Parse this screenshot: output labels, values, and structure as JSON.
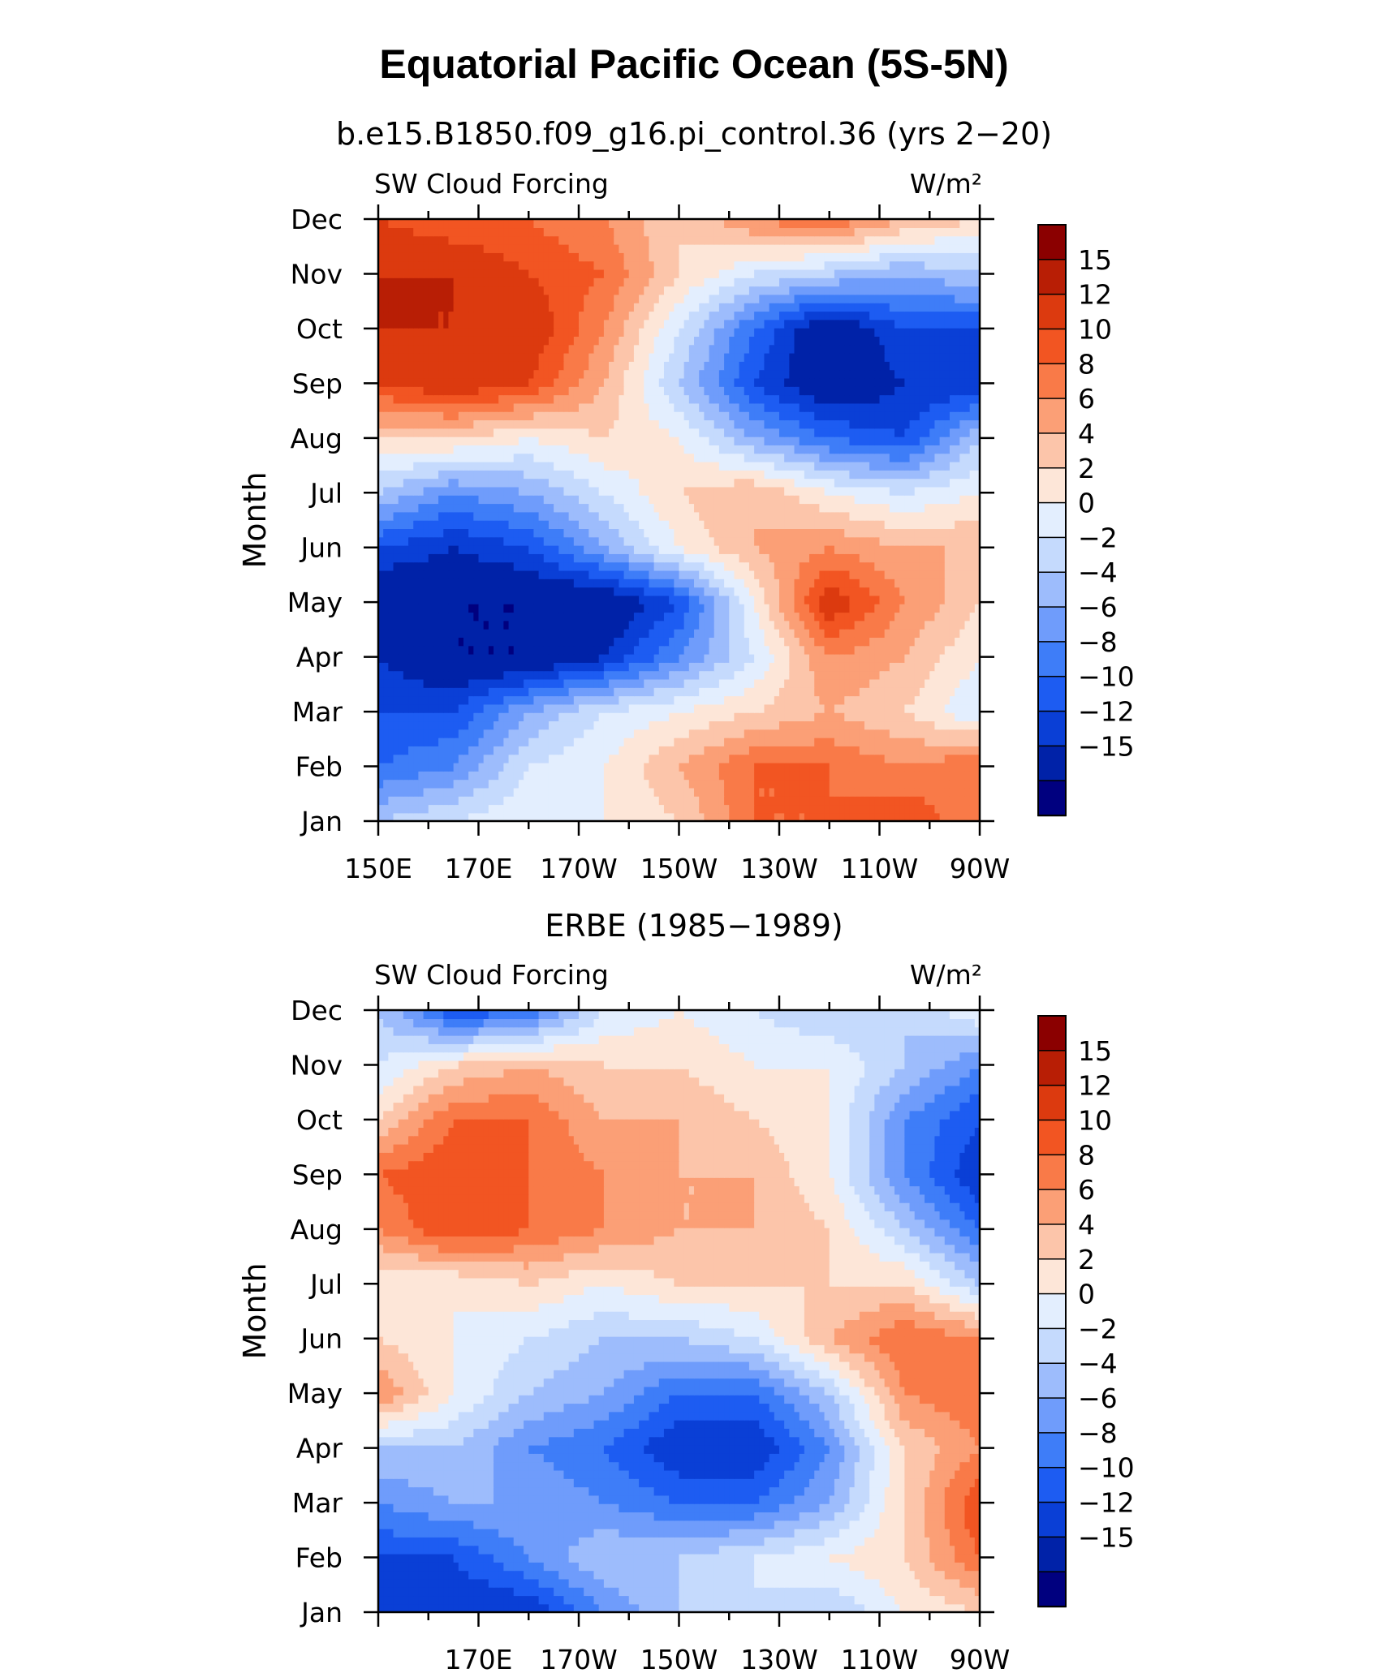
{
  "page_title": "Equatorial Pacific Ocean (5S-5N)",
  "chart_data": [
    {
      "type": "heatmap",
      "title": "b.e15.B1850.f09_g16.pi_control.36 (yrs 2−20)",
      "left_label": "SW Cloud Forcing",
      "units_label": "W/m²",
      "ylabel": "Month",
      "xlabel": "",
      "x_tick_labels": [
        "150E",
        "170E",
        "170W",
        "150W",
        "130W",
        "110W",
        "90W"
      ],
      "x_tick_values": [
        150,
        170,
        190,
        210,
        230,
        250,
        270
      ],
      "xlim": [
        150,
        270
      ],
      "y_tick_labels": [
        "Jan",
        "Feb",
        "Mar",
        "Apr",
        "May",
        "Jun",
        "Jul",
        "Aug",
        "Sep",
        "Oct",
        "Nov",
        "Dec"
      ],
      "grid_x": [
        150,
        165,
        180,
        195,
        210,
        225,
        240,
        255,
        270
      ],
      "grid_y": [
        "Jan",
        "Feb",
        "Mar",
        "Apr",
        "May",
        "Jun",
        "Jul",
        "Aug",
        "Sep",
        "Oct",
        "Nov",
        "Dec"
      ],
      "values": [
        [
          -2,
          0,
          2,
          2,
          4,
          10,
          10,
          12,
          8
        ],
        [
          -8,
          -6,
          0,
          2,
          6,
          10,
          10,
          8,
          10
        ],
        [
          -10,
          -10,
          -4,
          0,
          2,
          4,
          6,
          4,
          0
        ],
        [
          -12,
          -15,
          -15,
          -12,
          -6,
          0,
          8,
          6,
          2
        ],
        [
          -15,
          -15,
          -15,
          -15,
          -10,
          2,
          14,
          8,
          4
        ],
        [
          -10,
          -12,
          -10,
          -4,
          2,
          6,
          8,
          6,
          6
        ],
        [
          -2,
          -6,
          -4,
          0,
          4,
          6,
          2,
          0,
          2
        ],
        [
          4,
          4,
          2,
          4,
          2,
          -4,
          -8,
          -10,
          -2
        ],
        [
          12,
          14,
          12,
          6,
          -2,
          -10,
          -15,
          -12,
          -12
        ],
        [
          15,
          15,
          14,
          8,
          0,
          -8,
          -15,
          -10,
          -10
        ],
        [
          15,
          15,
          12,
          10,
          4,
          0,
          -2,
          -4,
          -2
        ],
        [
          12,
          10,
          10,
          8,
          4,
          8,
          10,
          6,
          4
        ]
      ],
      "colorbar": {
        "labels": [
          "15",
          "12",
          "10",
          "8",
          "6",
          "4",
          "2",
          "0",
          "−2",
          "−4",
          "−6",
          "−8",
          "−10",
          "−12",
          "−15"
        ],
        "levels": [
          -15,
          -12,
          -10,
          -8,
          -6,
          -4,
          -2,
          0,
          2,
          4,
          6,
          8,
          10,
          12,
          15
        ],
        "colors": [
          "#00007f",
          "#0022a8",
          "#0a3fd6",
          "#1d5cf2",
          "#3e7df8",
          "#6f9cfb",
          "#9dbcfc",
          "#c5dafd",
          "#e3eefe",
          "#fde6d8",
          "#fcc5aa",
          "#fb9f76",
          "#f97a48",
          "#f25522",
          "#dc3a0f",
          "#b81e05",
          "#8b0000"
        ]
      }
    },
    {
      "type": "heatmap",
      "title": "ERBE (1985−1989)",
      "left_label": "SW Cloud Forcing",
      "units_label": "W/m²",
      "ylabel": "Month",
      "xlabel": "",
      "x_tick_labels": [
        "170E",
        "170W",
        "150W",
        "130W",
        "110W",
        "90W"
      ],
      "x_tick_values": [
        170,
        190,
        210,
        230,
        250,
        270
      ],
      "xlim": [
        150,
        270
      ],
      "y_tick_labels": [
        "Jan",
        "Feb",
        "Mar",
        "Apr",
        "May",
        "Jun",
        "Jul",
        "Aug",
        "Sep",
        "Oct",
        "Nov",
        "Dec"
      ],
      "grid_x": [
        150,
        165,
        180,
        195,
        210,
        225,
        240,
        255,
        270
      ],
      "grid_y": [
        "Jan",
        "Feb",
        "Mar",
        "Apr",
        "May",
        "Jun",
        "Jul",
        "Aug",
        "Sep",
        "Oct",
        "Nov",
        "Dec"
      ],
      "values": [
        [
          -10,
          -12,
          -12,
          -6,
          -2,
          0,
          -2,
          2,
          4
        ],
        [
          -10,
          -10,
          -6,
          -2,
          -2,
          0,
          2,
          4,
          10
        ],
        [
          -6,
          -4,
          -4,
          -6,
          -8,
          -8,
          -4,
          4,
          12
        ],
        [
          -2,
          -2,
          -6,
          -8,
          -12,
          -12,
          -6,
          4,
          8
        ],
        [
          8,
          2,
          -2,
          -4,
          -8,
          -8,
          -2,
          8,
          10
        ],
        [
          4,
          2,
          0,
          -2,
          -2,
          0,
          6,
          10,
          8
        ],
        [
          2,
          2,
          4,
          2,
          4,
          4,
          4,
          4,
          -2
        ],
        [
          8,
          12,
          10,
          8,
          6,
          6,
          4,
          -2,
          -8
        ],
        [
          10,
          12,
          10,
          8,
          6,
          6,
          2,
          -6,
          -12
        ],
        [
          4,
          10,
          10,
          6,
          6,
          4,
          2,
          -6,
          -10
        ],
        [
          0,
          4,
          6,
          4,
          4,
          2,
          2,
          -2,
          -6
        ],
        [
          -2,
          -10,
          -8,
          0,
          2,
          0,
          -2,
          -2,
          2
        ]
      ],
      "colorbar": {
        "labels": [
          "15",
          "12",
          "10",
          "8",
          "6",
          "4",
          "2",
          "0",
          "−2",
          "−4",
          "−6",
          "−8",
          "−10",
          "−12",
          "−15"
        ],
        "levels": [
          -15,
          -12,
          -10,
          -8,
          -6,
          -4,
          -2,
          0,
          2,
          4,
          6,
          8,
          10,
          12,
          15
        ],
        "colors": [
          "#00007f",
          "#0022a8",
          "#0a3fd6",
          "#1d5cf2",
          "#3e7df8",
          "#6f9cfb",
          "#9dbcfc",
          "#c5dafd",
          "#e3eefe",
          "#fde6d8",
          "#fcc5aa",
          "#fb9f76",
          "#f97a48",
          "#f25522",
          "#dc3a0f",
          "#b81e05",
          "#8b0000"
        ]
      }
    }
  ]
}
